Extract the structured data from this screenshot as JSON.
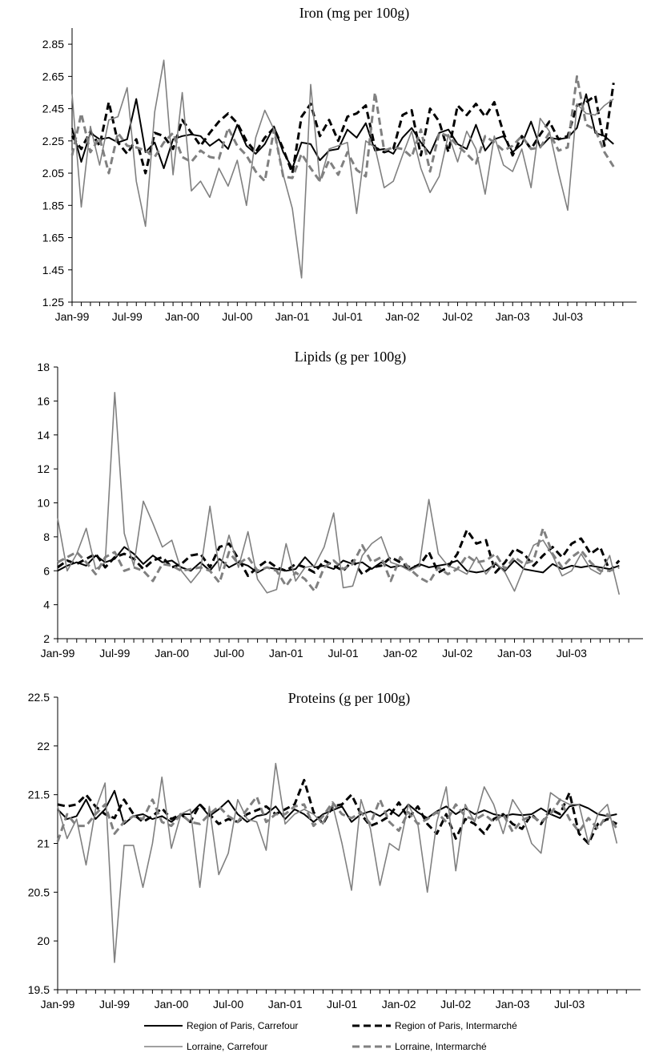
{
  "chart_data": [
    {
      "type": "line",
      "title": "Iron (mg per 100g)",
      "xlabel": "",
      "ylabel": "",
      "ylim": [
        1.25,
        2.95
      ],
      "yticks": [
        "1.25",
        "1.45",
        "1.65",
        "1.85",
        "2.05",
        "2.25",
        "2.45",
        "2.65",
        "2.85"
      ],
      "xticks": [
        "Jan-99",
        "Jul-99",
        "Jan-00",
        "Jul-00",
        "Jan-01",
        "Jul-01",
        "Jan-02",
        "Jul-02",
        "Jan-03",
        "Jul-03"
      ],
      "x_months": 60,
      "series": [
        {
          "name": "Region of Paris, Carrefour",
          "values": [
            2.33,
            2.12,
            2.3,
            2.26,
            2.27,
            2.24,
            2.26,
            2.51,
            2.18,
            2.24,
            2.08,
            2.26,
            2.28,
            2.29,
            2.28,
            2.22,
            2.26,
            2.2,
            2.35,
            2.22,
            2.17,
            2.23,
            2.34,
            2.18,
            2.08,
            2.24,
            2.23,
            2.13,
            2.19,
            2.2,
            2.32,
            2.27,
            2.36,
            2.19,
            2.2,
            2.17,
            2.27,
            2.33,
            2.24,
            2.17,
            2.3,
            2.32,
            2.23,
            2.2,
            2.35,
            2.19,
            2.26,
            2.28,
            2.18,
            2.23,
            2.37,
            2.21,
            2.27,
            2.26,
            2.27,
            2.33,
            2.54,
            2.3,
            2.28,
            2.23
          ]
        },
        {
          "name": "Region of Paris, Intermarché",
          "values": [
            2.28,
            2.2,
            2.31,
            2.22,
            2.49,
            2.24,
            2.17,
            2.26,
            2.05,
            2.3,
            2.28,
            2.2,
            2.38,
            2.3,
            2.22,
            2.3,
            2.37,
            2.42,
            2.36,
            2.25,
            2.18,
            2.27,
            2.33,
            2.2,
            2.05,
            2.4,
            2.48,
            2.28,
            2.38,
            2.25,
            2.4,
            2.42,
            2.47,
            2.21,
            2.18,
            2.2,
            2.41,
            2.44,
            2.16,
            2.45,
            2.37,
            2.18,
            2.47,
            2.41,
            2.48,
            2.4,
            2.49,
            2.3,
            2.16,
            2.28,
            2.2,
            2.29,
            2.37,
            2.26,
            2.28,
            2.47,
            2.49,
            2.53,
            2.22,
            2.61
          ]
        },
        {
          "name": "Lorraine, Carrefour",
          "values": [
            2.54,
            1.84,
            2.34,
            2.1,
            2.38,
            2.4,
            2.58,
            2.0,
            1.72,
            2.43,
            2.75,
            2.04,
            2.55,
            1.94,
            2.0,
            1.9,
            2.08,
            1.97,
            2.13,
            1.85,
            2.27,
            2.44,
            2.32,
            2.04,
            1.83,
            1.4,
            2.6,
            2.0,
            2.2,
            2.22,
            2.24,
            1.8,
            2.25,
            2.21,
            1.96,
            2.0,
            2.16,
            2.31,
            2.08,
            1.93,
            2.03,
            2.29,
            2.12,
            2.31,
            2.2,
            1.92,
            2.28,
            2.1,
            2.06,
            2.2,
            1.96,
            2.39,
            2.31,
            2.05,
            1.82,
            2.48,
            2.42,
            2.41,
            2.47,
            2.51
          ]
        },
        {
          "name": "Lorraine, Intermarché",
          "values": [
            2.16,
            2.42,
            2.18,
            2.27,
            2.05,
            2.3,
            2.22,
            2.21,
            2.19,
            2.15,
            2.24,
            2.3,
            2.15,
            2.12,
            2.19,
            2.15,
            2.14,
            2.33,
            2.22,
            2.16,
            2.06,
            2.0,
            2.32,
            2.03,
            2.02,
            2.17,
            2.08,
            2.0,
            2.13,
            2.04,
            2.18,
            2.07,
            2.03,
            2.55,
            2.19,
            2.21,
            2.2,
            2.15,
            2.32,
            2.06,
            2.3,
            2.28,
            2.22,
            2.17,
            2.11,
            2.28,
            2.24,
            2.19,
            2.22,
            2.28,
            2.2,
            2.21,
            2.3,
            2.19,
            2.21,
            2.65,
            2.35,
            2.32,
            2.18,
            2.09
          ]
        }
      ]
    },
    {
      "type": "line",
      "title": "Lipids (g per 100g)",
      "xlabel": "",
      "ylabel": "",
      "ylim": [
        2,
        18
      ],
      "yticks": [
        "2",
        "4",
        "6",
        "8",
        "10",
        "12",
        "14",
        "16",
        "18"
      ],
      "xticks": [
        "Jan-99",
        "Jul-99",
        "Jan-00",
        "Jul-00",
        "Jan-01",
        "Jul-01",
        "Jan-02",
        "Jul-02",
        "Jan-03",
        "Jul-03"
      ],
      "x_months": 60,
      "series": [
        {
          "name": "Region of Paris, Carrefour",
          "values": [
            6.0,
            6.3,
            6.5,
            6.3,
            6.9,
            6.5,
            6.7,
            7.4,
            7.0,
            6.4,
            6.9,
            6.5,
            6.6,
            6.2,
            6.0,
            6.5,
            6.0,
            6.7,
            6.2,
            6.5,
            6.3,
            5.9,
            6.2,
            6.1,
            6.0,
            6.1,
            6.8,
            6.2,
            6.3,
            6.1,
            6.6,
            6.4,
            6.5,
            6.1,
            6.5,
            6.2,
            6.3,
            6.1,
            6.4,
            6.2,
            6.3,
            6.4,
            6.6,
            6.0,
            5.9,
            6.0,
            6.4,
            6.0,
            6.6,
            6.1,
            6.0,
            5.9,
            6.4,
            6.1,
            6.3,
            6.2,
            6.3,
            6.2,
            6.1,
            6.3
          ]
        },
        {
          "name": "Region of Paris, Intermarché",
          "values": [
            6.2,
            6.6,
            6.4,
            6.7,
            7.0,
            6.2,
            6.8,
            7.0,
            6.7,
            6.1,
            6.6,
            6.8,
            6.2,
            6.4,
            6.9,
            7.0,
            6.2,
            7.4,
            7.6,
            6.7,
            5.7,
            6.2,
            6.6,
            6.2,
            6.0,
            6.4,
            6.2,
            5.9,
            6.6,
            6.3,
            6.0,
            6.6,
            5.8,
            6.2,
            6.3,
            6.8,
            6.5,
            6.2,
            6.3,
            7.1,
            5.9,
            6.2,
            7.0,
            8.4,
            7.6,
            7.8,
            5.9,
            6.5,
            7.3,
            7.0,
            6.3,
            6.9,
            7.4,
            6.8,
            7.6,
            7.9,
            7.0,
            7.4,
            6.0,
            6.6
          ]
        },
        {
          "name": "Lorraine, Carrefour",
          "values": [
            9.1,
            6.0,
            7.0,
            8.5,
            6.1,
            6.5,
            16.5,
            8.2,
            6.3,
            10.1,
            8.8,
            7.4,
            7.8,
            6.0,
            5.3,
            6.0,
            9.8,
            6.0,
            8.1,
            6.2,
            8.3,
            5.5,
            4.7,
            4.9,
            7.6,
            5.4,
            6.2,
            6.3,
            7.4,
            9.4,
            5.0,
            5.1,
            6.9,
            7.6,
            8.0,
            6.5,
            6.3,
            6.0,
            6.3,
            10.2,
            7.0,
            6.3,
            6.1,
            5.8,
            6.8,
            5.8,
            6.5,
            5.9,
            4.8,
            6.2,
            7.5,
            7.8,
            6.9,
            5.7,
            6.0,
            7.0,
            6.1,
            5.8,
            6.9,
            4.6
          ]
        },
        {
          "name": "Lorraine, Intermarché",
          "values": [
            6.5,
            6.8,
            7.1,
            6.5,
            5.8,
            6.8,
            7.1,
            6.0,
            6.2,
            6.0,
            5.4,
            6.4,
            6.3,
            6.0,
            6.1,
            6.2,
            6.0,
            5.3,
            7.1,
            6.4,
            6.8,
            6.0,
            6.2,
            6.0,
            5.1,
            5.9,
            5.5,
            4.8,
            6.2,
            6.6,
            6.1,
            6.4,
            7.5,
            6.5,
            6.8,
            5.4,
            6.8,
            6.1,
            5.6,
            5.3,
            6.2,
            5.8,
            6.1,
            6.9,
            6.5,
            6.6,
            7.0,
            6.1,
            6.8,
            6.4,
            6.6,
            8.5,
            7.0,
            6.2,
            6.8,
            7.2,
            6.5,
            6.0,
            6.0,
            6.2
          ]
        }
      ]
    },
    {
      "type": "line",
      "title": "Proteins (g per 100g)",
      "xlabel": "",
      "ylabel": "",
      "ylim": [
        19.5,
        22.5
      ],
      "yticks": [
        "19.5",
        "20",
        "20.5",
        "21",
        "21.5",
        "22",
        "22.5"
      ],
      "xticks": [
        "Jan-99",
        "Jul-99",
        "Jan-00",
        "Jul-00",
        "Jan-01",
        "Jul-01",
        "Jan-02",
        "Jul-02",
        "Jan-03",
        "Jul-03"
      ],
      "x_months": 60,
      "series": [
        {
          "name": "Region of Paris, Carrefour",
          "values": [
            21.35,
            21.25,
            21.28,
            21.45,
            21.25,
            21.35,
            21.54,
            21.2,
            21.28,
            21.3,
            21.25,
            21.28,
            21.22,
            21.3,
            21.3,
            21.4,
            21.28,
            21.35,
            21.44,
            21.3,
            21.22,
            21.28,
            21.3,
            21.38,
            21.25,
            21.35,
            21.3,
            21.22,
            21.3,
            21.34,
            21.38,
            21.22,
            21.3,
            21.33,
            21.28,
            21.35,
            21.28,
            21.4,
            21.32,
            21.26,
            21.33,
            21.38,
            21.3,
            21.36,
            21.3,
            21.34,
            21.3,
            21.28,
            21.3,
            21.29,
            21.3,
            21.36,
            21.3,
            21.26,
            21.38,
            21.4,
            21.36,
            21.3,
            21.28,
            21.3
          ]
        },
        {
          "name": "Region of Paris, Intermarché",
          "values": [
            21.4,
            21.38,
            21.4,
            21.5,
            21.38,
            21.3,
            21.26,
            21.45,
            21.3,
            21.22,
            21.28,
            21.36,
            21.25,
            21.3,
            21.22,
            21.4,
            21.3,
            21.2,
            21.25,
            21.22,
            21.3,
            21.34,
            21.38,
            21.3,
            21.35,
            21.4,
            21.65,
            21.32,
            21.2,
            21.38,
            21.4,
            21.5,
            21.3,
            21.18,
            21.22,
            21.28,
            21.42,
            21.26,
            21.38,
            21.2,
            21.1,
            21.3,
            21.05,
            21.25,
            21.2,
            21.1,
            21.25,
            21.3,
            21.2,
            21.15,
            21.3,
            21.2,
            21.35,
            21.3,
            21.52,
            21.1,
            21.0,
            21.2,
            21.25,
            21.2
          ]
        },
        {
          "name": "Lorraine, Carrefour",
          "values": [
            21.38,
            21.05,
            21.25,
            20.78,
            21.35,
            21.62,
            19.78,
            20.98,
            20.98,
            20.55,
            21.0,
            21.68,
            20.95,
            21.3,
            21.35,
            20.55,
            21.38,
            20.68,
            20.9,
            21.45,
            21.25,
            21.22,
            20.93,
            21.82,
            21.2,
            21.3,
            21.35,
            21.3,
            21.2,
            21.4,
            21.0,
            20.52,
            21.45,
            21.15,
            20.57,
            21.0,
            20.93,
            21.4,
            21.2,
            20.5,
            21.22,
            21.58,
            20.72,
            21.4,
            21.22,
            21.58,
            21.4,
            21.1,
            21.45,
            21.3,
            21.0,
            20.9,
            21.52,
            21.45,
            21.4,
            21.4,
            21.0,
            21.3,
            21.4,
            21.0
          ]
        },
        {
          "name": "Lorraine, Intermarché",
          "values": [
            21.02,
            21.3,
            21.18,
            21.18,
            21.3,
            21.4,
            21.1,
            21.22,
            21.28,
            21.25,
            21.45,
            21.22,
            21.18,
            21.3,
            21.22,
            21.2,
            21.3,
            21.38,
            21.28,
            21.22,
            21.35,
            21.48,
            21.22,
            21.3,
            21.3,
            21.38,
            21.4,
            21.18,
            21.28,
            21.42,
            21.3,
            21.26,
            21.32,
            21.2,
            21.45,
            21.22,
            21.13,
            21.32,
            21.2,
            21.25,
            21.32,
            21.22,
            21.4,
            21.28,
            21.24,
            21.3,
            21.22,
            21.3,
            21.12,
            21.24,
            21.28,
            21.22,
            21.3,
            21.45,
            21.25,
            21.12,
            21.26,
            21.15,
            21.3,
            21.15
          ]
        }
      ]
    }
  ],
  "legend": [
    {
      "label": "Region of Paris, Carrefour",
      "color": "#000000",
      "dashed": false,
      "width": "thick"
    },
    {
      "label": "Region of Paris, Intermarché",
      "color": "#000000",
      "dashed": true,
      "width": "thick"
    },
    {
      "label": "Lorraine, Carrefour",
      "color": "#808080",
      "dashed": false,
      "width": "thin"
    },
    {
      "label": "Lorraine, Intermarché",
      "color": "#808080",
      "dashed": true,
      "width": "thick"
    }
  ],
  "colors": {
    "black": "#000000",
    "gray": "#808080"
  }
}
